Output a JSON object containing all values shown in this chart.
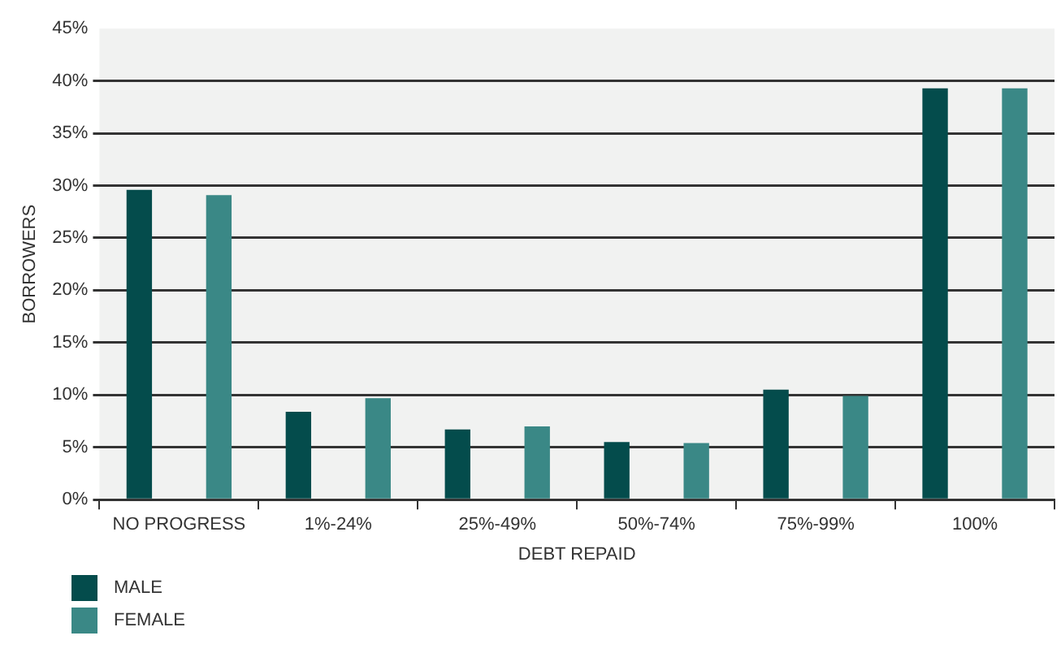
{
  "chart_data": {
    "type": "bar",
    "xlabel": "DEBT REPAID",
    "ylabel": "BORROWERS",
    "categories": [
      "NO PROGRESS",
      "1%-24%",
      "25%-49%",
      "50%-74%",
      "75%-99%",
      "100%"
    ],
    "series": [
      {
        "name": "MALE",
        "color": "#044c4c",
        "values": [
          29.6,
          8.4,
          6.7,
          5.5,
          10.5,
          39.3
        ]
      },
      {
        "name": "FEMALE",
        "color": "#3a8886",
        "values": [
          29.1,
          9.7,
          7.0,
          5.4,
          9.9,
          39.3
        ]
      }
    ],
    "ylim": [
      0,
      45
    ],
    "yticks": [
      {
        "value": 0,
        "label": "0%"
      },
      {
        "value": 5,
        "label": "5%"
      },
      {
        "value": 10,
        "label": "10%"
      },
      {
        "value": 15,
        "label": "15%"
      },
      {
        "value": 20,
        "label": "20%"
      },
      {
        "value": 25,
        "label": "25%"
      },
      {
        "value": 30,
        "label": "30%"
      },
      {
        "value": 35,
        "label": "35%"
      },
      {
        "value": 40,
        "label": "40%"
      },
      {
        "value": 45,
        "label": "45%"
      }
    ],
    "grid": "y",
    "legend": "bottom left"
  }
}
